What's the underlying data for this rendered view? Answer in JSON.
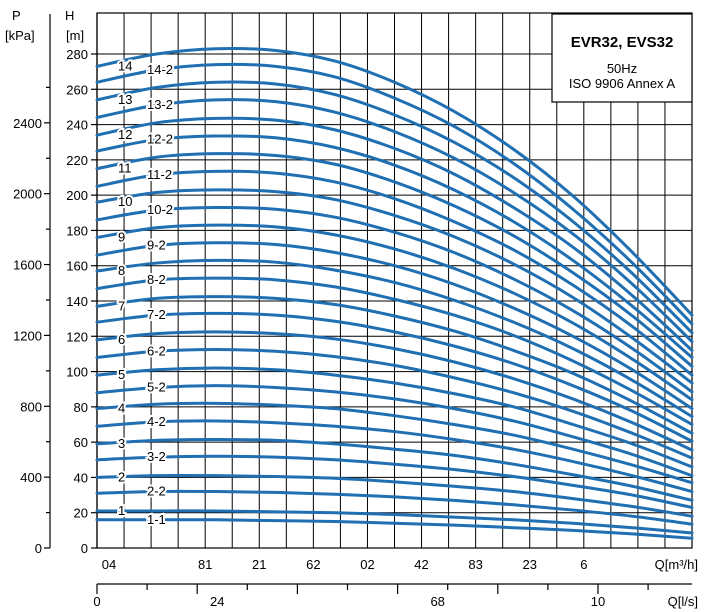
{
  "chart_data": {
    "type": "line",
    "title": "EVR32, EVS32",
    "subtitle_lines": [
      "50Hz",
      "ISO 9906 Annex A"
    ],
    "y_left_label": [
      "P",
      "[kPa]"
    ],
    "y_right_label": [
      "H",
      "[m]"
    ],
    "x_top_label": "Q[m³/h]",
    "x_bottom_label": "Q[l/s]",
    "grid": true,
    "legend_placement": "top-right",
    "series_color": "#1f6fb2",
    "H_ticks": [
      "0",
      "20",
      "40",
      "60",
      "80",
      "100",
      "120",
      "140",
      "160",
      "180",
      "200",
      "220",
      "240",
      "260",
      "280"
    ],
    "H_tick_values": [
      0,
      20,
      40,
      60,
      80,
      100,
      120,
      140,
      160,
      180,
      200,
      220,
      240,
      260,
      280
    ],
    "P_ticks": [
      "0",
      "400",
      "800",
      "1200",
      "1600",
      "2000",
      "2400"
    ],
    "P_tick_values": [
      0,
      400,
      800,
      1200,
      1600,
      2000,
      2400
    ],
    "x_top_ticks": [
      "04",
      "81",
      "21",
      "62",
      "02",
      "42",
      "83",
      "23",
      "6"
    ],
    "x_bottom_ticks": [
      "0",
      "24",
      "68",
      "10"
    ],
    "x_bottom_tick_values": [
      0,
      2.4,
      6.8,
      10
    ],
    "x_major_tick_count": 11,
    "x_range": [
      0,
      11
    ],
    "y_range": [
      0,
      290
    ],
    "series": [
      {
        "name": "1-1",
        "values": [
          16,
          16,
          16,
          15.5,
          15,
          14,
          13,
          11.5,
          10,
          8,
          5.5
        ]
      },
      {
        "name": "1",
        "values": [
          21,
          21,
          21,
          20.5,
          20,
          19,
          17.5,
          16,
          14,
          11.5,
          8.5
        ]
      },
      {
        "name": "2-2",
        "values": [
          31,
          32,
          32,
          31.5,
          30.5,
          29,
          27,
          24.5,
          21.5,
          18,
          13.5
        ]
      },
      {
        "name": "2",
        "values": [
          40,
          41,
          41,
          40.5,
          39.5,
          37.5,
          35,
          32,
          28,
          23.5,
          18
        ]
      },
      {
        "name": "3-2",
        "values": [
          50,
          51.5,
          52,
          51.5,
          50,
          47.5,
          44.5,
          40.5,
          35.5,
          30,
          23
        ]
      },
      {
        "name": "3",
        "values": [
          59,
          61,
          61.5,
          61,
          59,
          56,
          52.5,
          47.5,
          41.5,
          35,
          27
        ]
      },
      {
        "name": "4-2",
        "values": [
          69,
          71.5,
          72,
          71,
          69,
          66,
          61.5,
          56,
          49,
          41,
          32
        ]
      },
      {
        "name": "4",
        "values": [
          79,
          81.5,
          82,
          81,
          79,
          75,
          70,
          64,
          56,
          47,
          37
        ]
      },
      {
        "name": "5-2",
        "values": [
          88,
          91,
          92,
          91,
          88.5,
          84.5,
          79,
          72,
          63,
          53,
          41
        ]
      },
      {
        "name": "5",
        "values": [
          98,
          101,
          102,
          101,
          98,
          93.5,
          87.5,
          80,
          70,
          59,
          46
        ]
      },
      {
        "name": "6-2",
        "values": [
          108,
          111.5,
          112.5,
          111.5,
          108.5,
          103.5,
          96.5,
          88,
          77.5,
          65,
          51
        ]
      },
      {
        "name": "6",
        "values": [
          118,
          121.5,
          122.5,
          121.5,
          118.5,
          113,
          105.5,
          96,
          84.5,
          71,
          55.5
        ]
      },
      {
        "name": "7-2",
        "values": [
          128,
          132,
          133,
          132,
          128.5,
          122.5,
          114.5,
          104.5,
          92,
          77.5,
          60.5
        ]
      },
      {
        "name": "7",
        "values": [
          137,
          141.5,
          142.5,
          141.5,
          138,
          131.5,
          123,
          112,
          99,
          83,
          65
        ]
      },
      {
        "name": "8-2",
        "values": [
          147,
          152,
          153,
          152,
          148,
          141,
          132,
          120.5,
          106,
          89,
          70
        ]
      },
      {
        "name": "8",
        "values": [
          157,
          161.5,
          163,
          162,
          157.5,
          150.5,
          140.5,
          128,
          113,
          95,
          74.5
        ]
      },
      {
        "name": "9-2",
        "values": [
          166,
          171.5,
          173,
          172,
          167.5,
          160,
          149.5,
          136,
          120,
          101,
          79
        ]
      },
      {
        "name": "9",
        "values": [
          176,
          181.5,
          183,
          182,
          177.5,
          169.5,
          158.5,
          144.5,
          127.5,
          107,
          84
        ]
      },
      {
        "name": "10-2",
        "values": [
          186,
          191.5,
          193,
          192,
          187.5,
          179,
          167.5,
          152.5,
          134.5,
          113,
          88.5
        ]
      },
      {
        "name": "10",
        "values": [
          196,
          201.5,
          203,
          202,
          197.5,
          188.5,
          176.5,
          161,
          142,
          119,
          93.5
        ]
      },
      {
        "name": "11-2",
        "values": [
          205,
          211.5,
          213.5,
          212.5,
          207.5,
          198,
          185,
          169,
          149,
          125.5,
          98
        ]
      },
      {
        "name": "11",
        "values": [
          215,
          221.5,
          223.5,
          222.5,
          217.5,
          207.5,
          194,
          177,
          156,
          131.5,
          103
        ]
      },
      {
        "name": "12-2",
        "values": [
          225,
          231.5,
          233.5,
          232.5,
          227,
          217,
          203,
          185,
          163,
          137,
          108
        ]
      },
      {
        "name": "12",
        "values": [
          234,
          241,
          243.5,
          242.5,
          237,
          226.5,
          212,
          193,
          170.5,
          143,
          112
        ]
      },
      {
        "name": "13-2",
        "values": [
          244,
          251,
          254,
          253,
          247,
          236,
          221,
          201.5,
          178,
          149.5,
          117
        ]
      },
      {
        "name": "13",
        "values": [
          254,
          261,
          264,
          263,
          257,
          245.5,
          230,
          210,
          185,
          155.5,
          122
        ]
      },
      {
        "name": "14-2",
        "values": [
          264,
          271,
          274,
          273,
          267,
          255,
          239,
          218,
          192,
          161.5,
          127
        ]
      },
      {
        "name": "14",
        "values": [
          273,
          280,
          283,
          282,
          276,
          264,
          247.5,
          226,
          199.5,
          167.5,
          132
        ]
      }
    ]
  }
}
